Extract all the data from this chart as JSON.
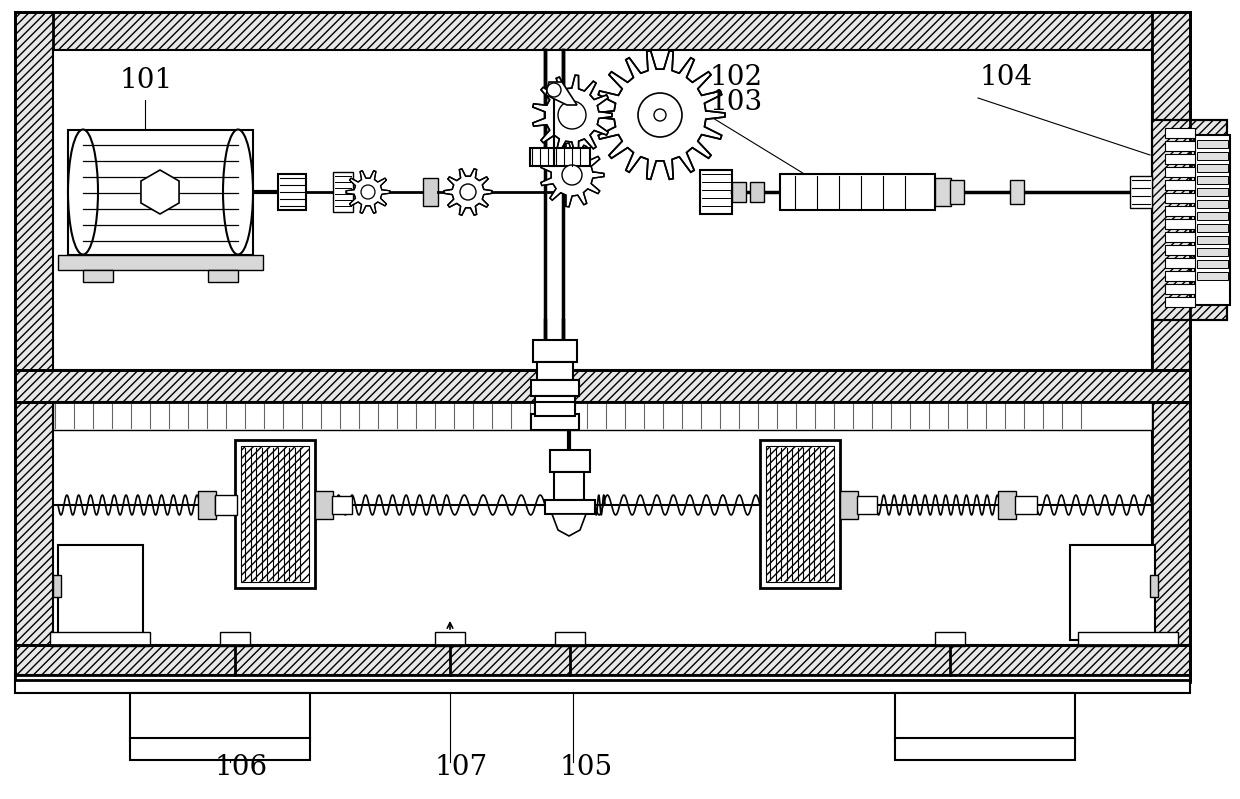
{
  "bg_color": "#ffffff",
  "line_color": "#000000",
  "label_101": "101",
  "label_102": "102",
  "label_103": "103",
  "label_104": "104",
  "label_105": "105",
  "label_106": "106",
  "label_107": "107",
  "label_fontsize": 20,
  "fig_width": 12.4,
  "fig_height": 7.99,
  "dpi": 100
}
